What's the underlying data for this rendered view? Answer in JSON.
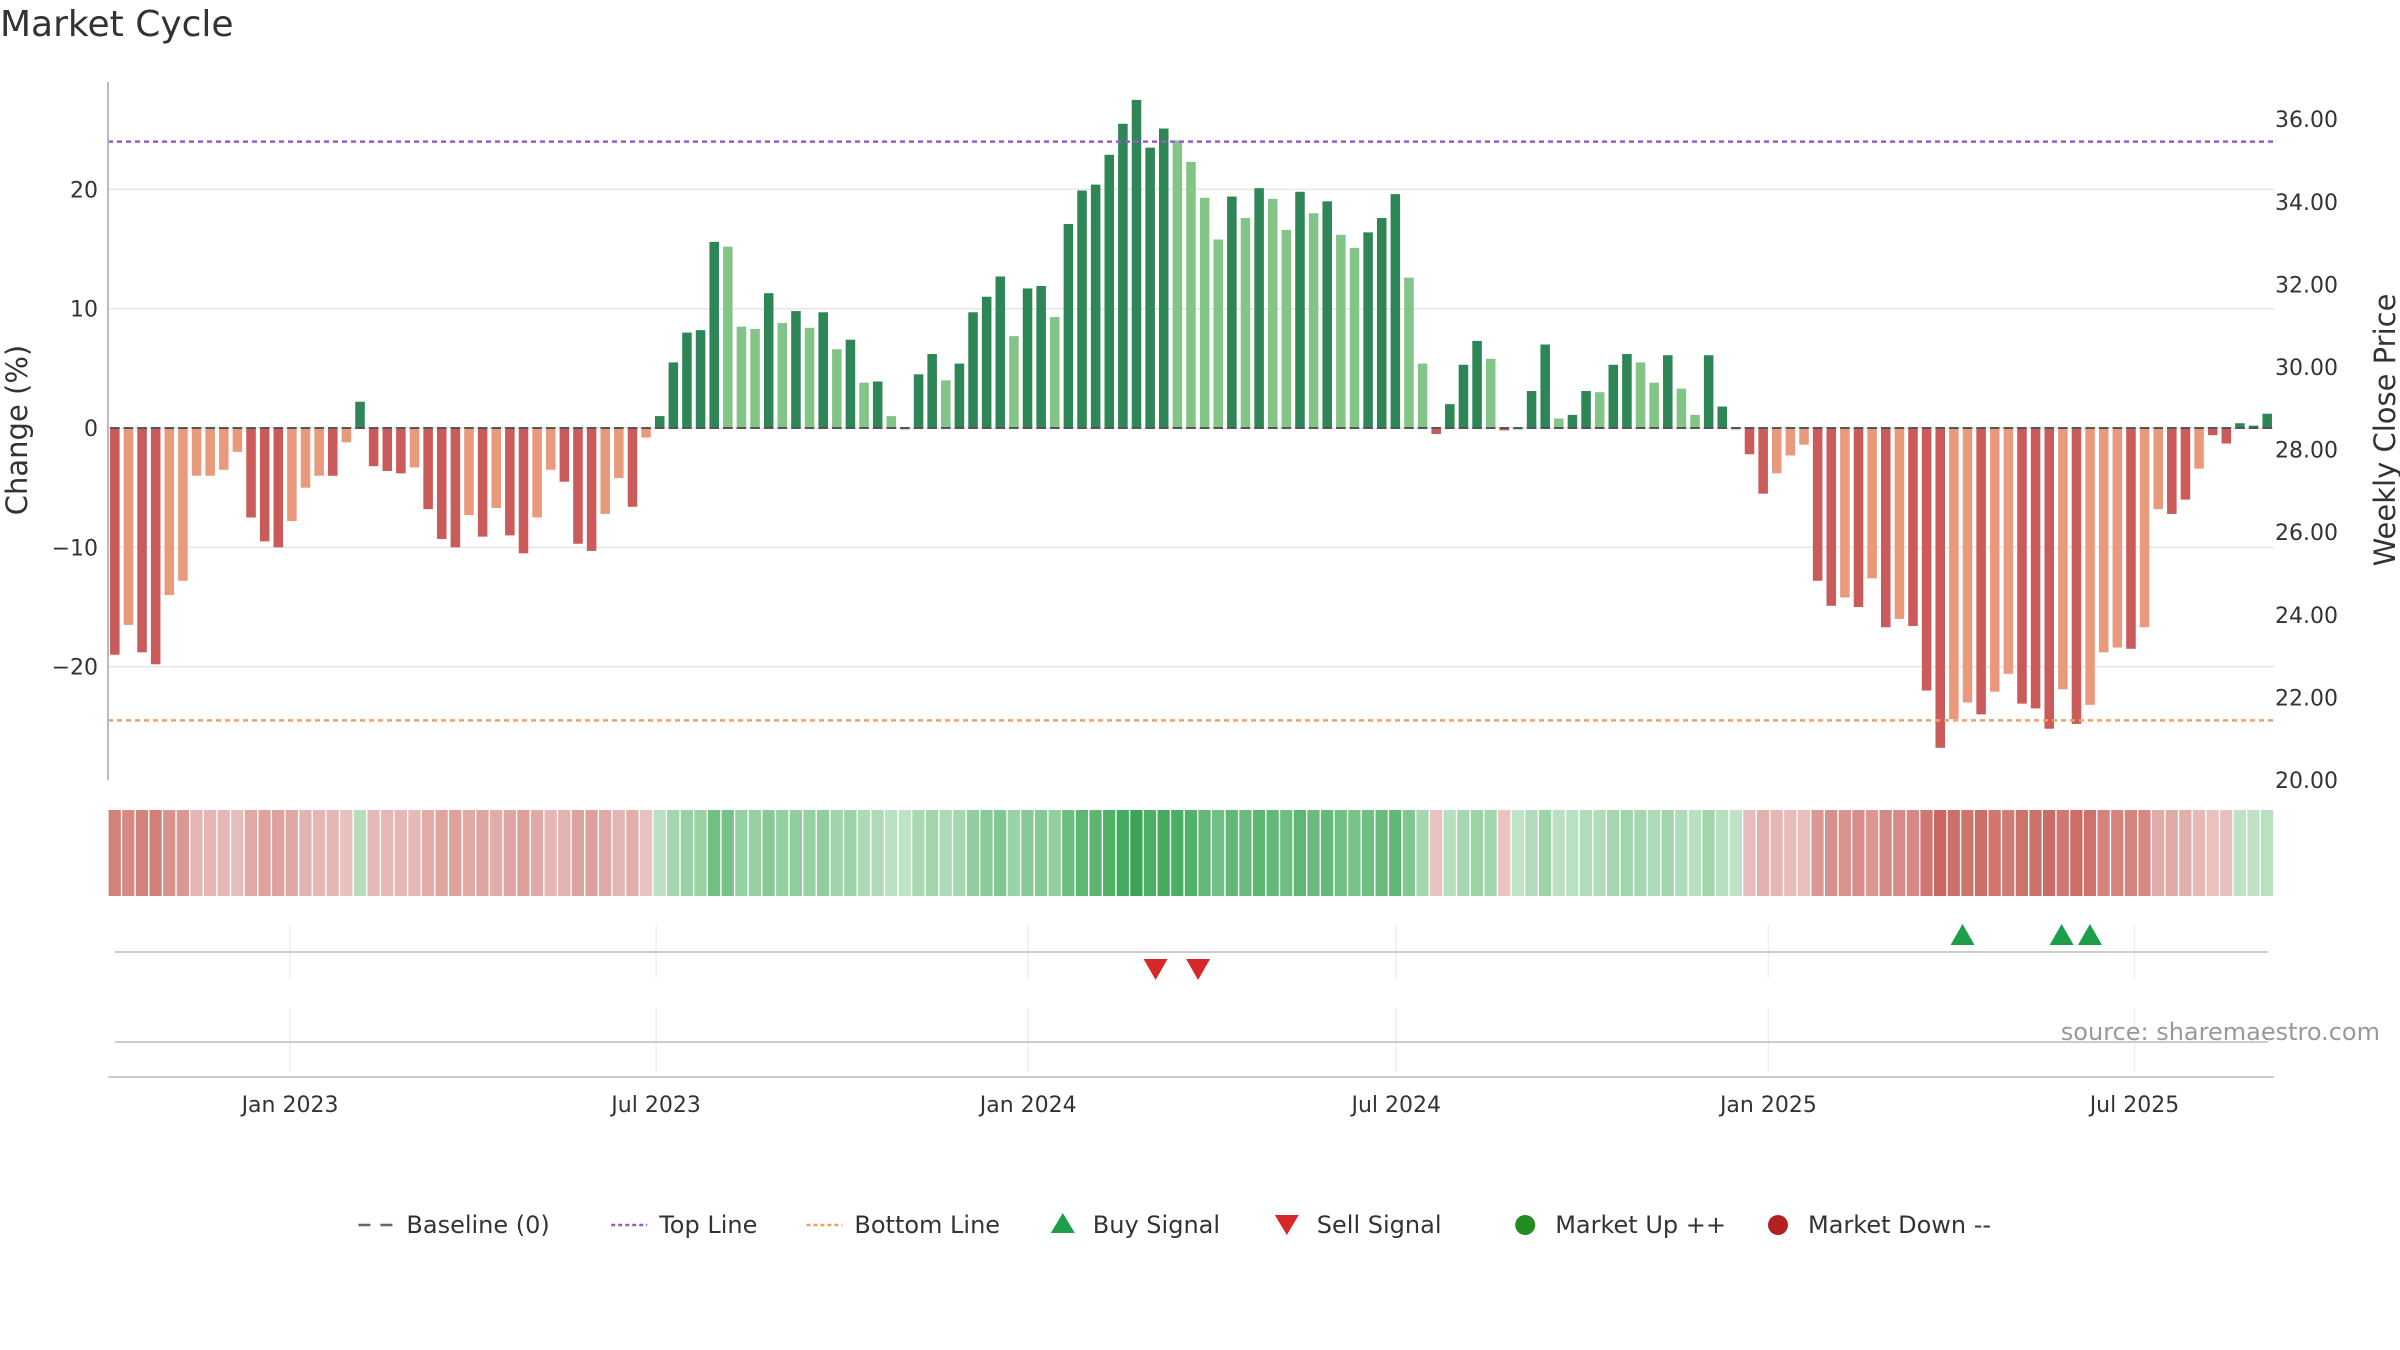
{
  "title": "Market Cycle",
  "colors": {
    "bar_pos_strong": "#2e8555",
    "bar_pos_weak": "#83c487",
    "bar_neg_strong": "#cb5a5a",
    "bar_neg_weak": "#e99a7c",
    "top_line": "#9b59d0",
    "bottom_line": "#f0a060",
    "buy": "#1e9e4a",
    "sell": "#d62828",
    "market_up": "#228b22",
    "market_down": "#b22222"
  },
  "chart_data": {
    "type": "bar",
    "ylabel": "Change (%)",
    "y2label": "Weekly Close Price",
    "ylim": [
      -29.5,
      29
    ],
    "y_ticks": [
      20,
      10,
      0,
      -10,
      -20
    ],
    "y_tick_labels": [
      "20",
      "10",
      "0",
      "−10",
      "−20"
    ],
    "y2lim": [
      20.0,
      36.9
    ],
    "y2_ticks": [
      "36.00",
      "34.00",
      "32.00",
      "30.00",
      "28.00",
      "26.00",
      "24.00",
      "22.00",
      "20.00"
    ],
    "x_start_date": "2022-10-03",
    "x_end_date": "2025-09-08",
    "x_ticks": [
      "2023-01-01",
      "2023-07-01",
      "2024-01-01",
      "2024-07-01",
      "2025-01-01",
      "2025-07-01"
    ],
    "x_tick_labels": [
      "Jan 2023",
      "Jul 2023",
      "Jan 2024",
      "Jul 2024",
      "Jan 2025",
      "Jul 2025"
    ],
    "top_line": 24,
    "bottom_line": -24.5,
    "values": [
      -19,
      -16.5,
      -18.8,
      -19.8,
      -14,
      -12.8,
      -4,
      -4,
      -3.5,
      -2,
      -7.5,
      -9.5,
      -10,
      -7.8,
      -5,
      -4,
      -4,
      -1.2,
      2.2,
      -3.2,
      -3.6,
      -3.8,
      -3.3,
      -6.8,
      -9.3,
      -10,
      -7.3,
      -9.1,
      -6.7,
      -9,
      -10.5,
      -7.5,
      -3.5,
      -4.5,
      -9.7,
      -10.3,
      -7.2,
      -4.2,
      -6.6,
      -0.8,
      1,
      5.5,
      8,
      8.2,
      15.6,
      15.2,
      8.5,
      8.3,
      11.3,
      8.8,
      9.8,
      8.4,
      9.7,
      6.6,
      7.4,
      3.8,
      3.9,
      1,
      0,
      4.5,
      6.2,
      4,
      5.4,
      9.7,
      11,
      12.7,
      7.7,
      11.7,
      11.9,
      9.3,
      17.1,
      19.9,
      20.4,
      22.9,
      25.5,
      27.5,
      23.5,
      25.1,
      24.1,
      22.3,
      19.3,
      15.8,
      19.4,
      17.6,
      20.1,
      19.2,
      16.6,
      19.8,
      18,
      19,
      16.2,
      15.1,
      16.4,
      17.6,
      19.6,
      12.6,
      5.4,
      -0.5,
      2,
      5.3,
      7.3,
      5.8,
      -0.2,
      0,
      3.1,
      7,
      0.8,
      1.1,
      3.1,
      3,
      5.3,
      6.2,
      5.5,
      3.8,
      6.1,
      3.3,
      1.1,
      6.1,
      1.8,
      0,
      -2.2,
      -5.5,
      -3.8,
      -2.3,
      -1.4,
      -12.8,
      -14.9,
      -14.2,
      -15,
      -12.6,
      -16.7,
      -16,
      -16.6,
      -22,
      -26.8,
      -24.4,
      -23,
      -24,
      -22.1,
      -20.6,
      -23.1,
      -23.5,
      -25.2,
      -21.9,
      -24.8,
      -23.2,
      -18.8,
      -18.4,
      -18.5,
      -16.7,
      -6.8,
      -7.2,
      -6,
      -3.4,
      -0.6,
      -1.3,
      0.4,
      0.2,
      1.2
    ],
    "strength": [
      1,
      0,
      1,
      1,
      0,
      0,
      0,
      0,
      0,
      0,
      1,
      1,
      1,
      0,
      0,
      0,
      1,
      0,
      1,
      1,
      1,
      1,
      0,
      1,
      1,
      1,
      0,
      1,
      0,
      1,
      1,
      0,
      0,
      1,
      1,
      1,
      0,
      0,
      1,
      0,
      1,
      1,
      1,
      1,
      1,
      0,
      0,
      0,
      1,
      0,
      1,
      0,
      1,
      0,
      1,
      0,
      1,
      0,
      0,
      1,
      1,
      0,
      1,
      1,
      1,
      1,
      0,
      1,
      1,
      0,
      1,
      1,
      1,
      1,
      1,
      1,
      1,
      1,
      0,
      0,
      0,
      0,
      1,
      0,
      1,
      0,
      0,
      1,
      0,
      1,
      0,
      0,
      1,
      1,
      1,
      0,
      0,
      1,
      1,
      1,
      1,
      0,
      1,
      0,
      1,
      1,
      0,
      1,
      1,
      0,
      1,
      1,
      0,
      0,
      1,
      0,
      0,
      1,
      1,
      0,
      1,
      1,
      0,
      0,
      0,
      1,
      1,
      0,
      1,
      0,
      1,
      0,
      1,
      1,
      1,
      0,
      0,
      1,
      0,
      0,
      1,
      1,
      1,
      0,
      1,
      0,
      0,
      0,
      1,
      0,
      0,
      1,
      1,
      0,
      1,
      1,
      1,
      1,
      1
    ],
    "buy_signal_dates": [
      "2025-04-07",
      "2025-05-26",
      "2025-06-09"
    ],
    "sell_signal_dates": [
      "2024-03-04",
      "2024-03-25"
    ],
    "legend_position": "bottom"
  },
  "legend": [
    {
      "label": "Baseline (0)",
      "kind": "dash",
      "color": "#666666"
    },
    {
      "label": "Top Line",
      "kind": "dotline",
      "color": "#9b59d0"
    },
    {
      "label": "Bottom Line",
      "kind": "dotline",
      "color": "#f0a060"
    },
    {
      "label": "Buy Signal",
      "kind": "tri-up",
      "color": "#1e9e4a"
    },
    {
      "label": "Sell Signal",
      "kind": "tri-down",
      "color": "#d62828"
    },
    {
      "label": "Market Up ++",
      "kind": "dot",
      "color": "#228b22"
    },
    {
      "label": "Market Down --",
      "kind": "dot",
      "color": "#b22222"
    }
  ],
  "source": "source: sharemaestro.com"
}
